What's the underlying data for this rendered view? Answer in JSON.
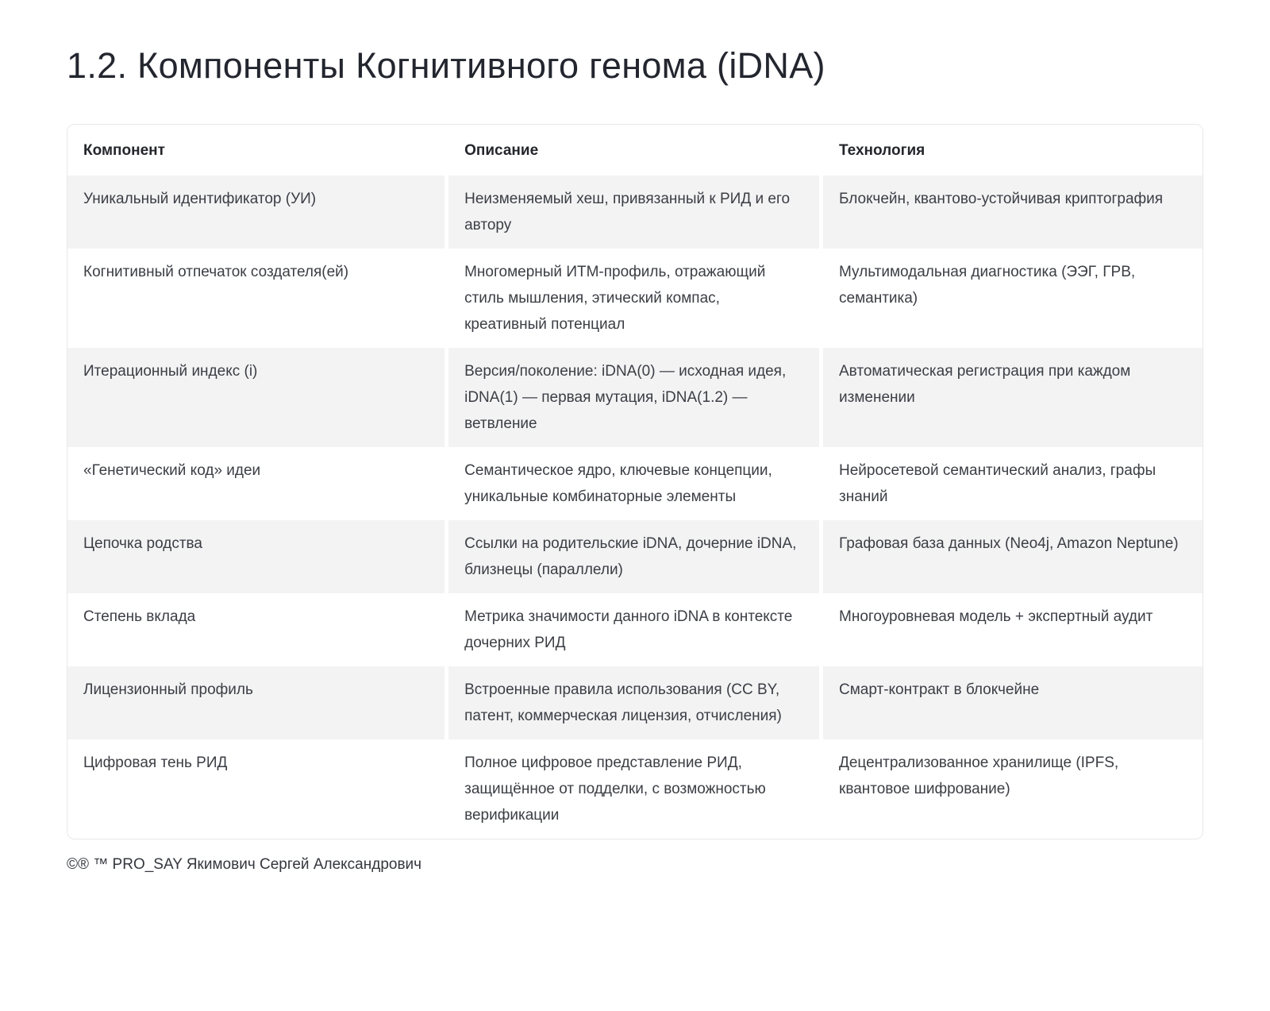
{
  "page": {
    "title": "1.2. Компоненты Когнитивного генома (iDNA)",
    "footer": "©® ™ PRO_SAY Якимович Сергей Александрович"
  },
  "table": {
    "columns": [
      "Компонент",
      "Описание",
      "Технология"
    ],
    "rows": [
      {
        "component": "Уникальный идентификатор (УИ)",
        "description": "Неизменяемый хеш, привязанный к РИД и его автору",
        "technology": "Блокчейн, квантово-устойчивая криптография"
      },
      {
        "component": "Когнитивный отпечаток создателя(ей)",
        "description": "Многомерный ИТМ-профиль, отражающий стиль мышления, этический компас, креативный потенциал",
        "technology": "Мультимодальная диагностика (ЭЭГ, ГРВ, семантика)"
      },
      {
        "component": "Итерационный индекс (i)",
        "description": "Версия/поколение: iDNA(0) — исходная идея, iDNA(1) — первая мутация, iDNA(1.2) — ветвление",
        "technology": "Автоматическая регистрация при каждом изменении"
      },
      {
        "component": "«Генетический код» идеи",
        "description": "Семантическое ядро, ключевые концепции, уникальные комбинаторные элементы",
        "technology": "Нейросетевой семантический анализ, графы знаний"
      },
      {
        "component": "Цепочка родства",
        "description": "Ссылки на родительские iDNA, дочерние iDNA, близнецы (параллели)",
        "technology": "Графовая база данных (Neo4j, Amazon Neptune)"
      },
      {
        "component": "Степень вклада",
        "description": "Метрика значимости данного iDNA в контексте дочерних РИД",
        "technology": "Многоуровневая модель + экспертный аудит"
      },
      {
        "component": "Лицензионный профиль",
        "description": "Встроенные правила использования (CC BY, патент, коммерческая лицензия, отчисления)",
        "technology": "Смарт-контракт в блокчейне"
      },
      {
        "component": "Цифровая тень РИД",
        "description": "Полное цифровое представление РИД, защищённое от подделки, с возможностью верификации",
        "technology": "Децентрализованное хранилище (IPFS, квантовое шифрование)"
      }
    ]
  },
  "colors": {
    "row_stripe_bg": "#f3f3f4",
    "table_border": "#e7e8ea",
    "heading_text": "#23262e",
    "body_text": "#3b3e44"
  }
}
